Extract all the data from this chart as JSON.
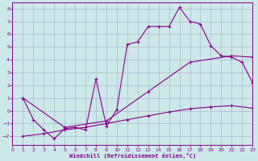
{
  "xlabel": "Windchill (Refroidissement éolien,°C)",
  "bg_color": "#cce8e8",
  "grid_color": "#aabbcc",
  "line_color": "#880088",
  "xlim": [
    0,
    23
  ],
  "ylim": [
    -2.7,
    8.5
  ],
  "xticks": [
    0,
    1,
    2,
    3,
    4,
    5,
    6,
    7,
    8,
    9,
    10,
    11,
    12,
    13,
    14,
    15,
    16,
    17,
    18,
    19,
    20,
    21,
    22,
    23
  ],
  "yticks": [
    -2,
    -1,
    0,
    1,
    2,
    3,
    4,
    5,
    6,
    7,
    8
  ],
  "line1_x": [
    1,
    2,
    3,
    4,
    5,
    6,
    7,
    8,
    9,
    10,
    11,
    12,
    13,
    14,
    15,
    16,
    17,
    18,
    19,
    20,
    21,
    22,
    23
  ],
  "line1_y": [
    1.0,
    -0.7,
    -1.5,
    -2.2,
    -1.4,
    -1.3,
    -1.5,
    2.5,
    -1.2,
    0.1,
    5.2,
    5.4,
    6.6,
    6.6,
    6.6,
    8.1,
    7.0,
    6.8,
    5.1,
    4.3,
    4.2,
    3.8,
    2.2
  ],
  "line3_x": [
    1,
    5,
    9,
    13,
    17,
    21,
    23
  ],
  "line3_y": [
    1.0,
    -1.3,
    -0.8,
    1.5,
    3.8,
    4.3,
    4.2
  ],
  "line4_x": [
    1,
    3,
    5,
    7,
    9,
    11,
    13,
    15,
    17,
    19,
    21,
    23
  ],
  "line4_y": [
    -2.0,
    -1.8,
    -1.5,
    -1.3,
    -1.0,
    -0.7,
    -0.4,
    -0.1,
    0.15,
    0.3,
    0.4,
    0.2
  ]
}
